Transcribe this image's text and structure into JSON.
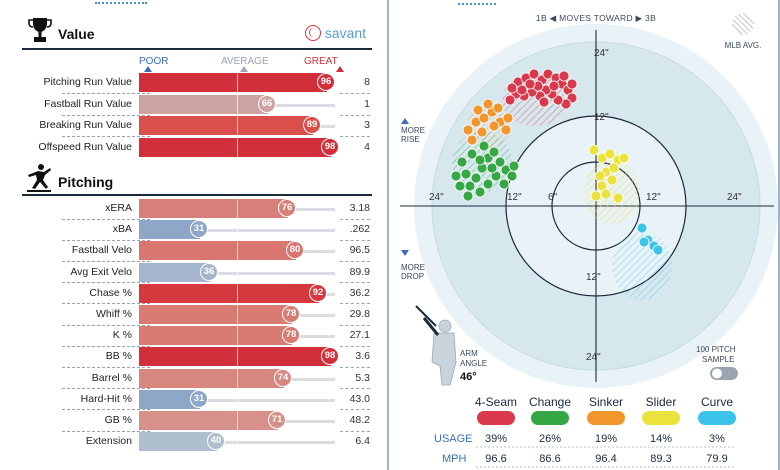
{
  "value_section": {
    "title": "Value",
    "brand": "savant",
    "scale": {
      "poor": "POOR",
      "average": "AVERAGE",
      "great": "GREAT"
    },
    "rows": [
      {
        "label": "Pitching Run Value",
        "percentile": 96,
        "value": "8",
        "color": "#d32f3a"
      },
      {
        "label": "Fastball Run Value",
        "percentile": 66,
        "value": "1",
        "color": "#cda4a2"
      },
      {
        "label": "Breaking Run Value",
        "percentile": 89,
        "value": "3",
        "color": "#da4f4c"
      },
      {
        "label": "Offspeed Run Value",
        "percentile": 98,
        "value": "4",
        "color": "#d32f3a"
      }
    ]
  },
  "pitching_section": {
    "title": "Pitching",
    "rows": [
      {
        "label": "xERA",
        "percentile": 76,
        "value": "3.18",
        "color": "#d77f78"
      },
      {
        "label": "xBA",
        "percentile": 31,
        "value": ".262",
        "color": "#8ea6c8"
      },
      {
        "label": "Fastball Velo",
        "percentile": 80,
        "value": "96.5",
        "color": "#d9766f"
      },
      {
        "label": "Avg Exit Velo",
        "percentile": 36,
        "value": "89.9",
        "color": "#a5b6cc"
      },
      {
        "label": "Chase %",
        "percentile": 92,
        "value": "36.2",
        "color": "#d5383d"
      },
      {
        "label": "Whiff %",
        "percentile": 78,
        "value": "29.8",
        "color": "#d77b73"
      },
      {
        "label": "K %",
        "percentile": 78,
        "value": "27.1",
        "color": "#d77b73"
      },
      {
        "label": "BB %",
        "percentile": 98,
        "value": "3.6",
        "color": "#d32f3a"
      },
      {
        "label": "Barrel %",
        "percentile": 74,
        "value": "5.3",
        "color": "#d8877f"
      },
      {
        "label": "Hard-Hit %",
        "percentile": 31,
        "value": "43.0",
        "color": "#8ea6c8"
      },
      {
        "label": "GB %",
        "percentile": 71,
        "value": "48.2",
        "color": "#d8918a"
      },
      {
        "label": "Extension",
        "percentile": 40,
        "value": "6.4",
        "color": "#b0bfcf"
      }
    ]
  },
  "movement_chart": {
    "header": "1B ◀ MOVES TOWARD ▶ 3B",
    "mlb_avg": "MLB AVG.",
    "more_rise": "MORE\nRISE",
    "more_drop": "MORE\nDROP",
    "arm_angle_label": "ARM\nANGLE",
    "arm_angle_value": "46°",
    "sample_label": "100 PITCH\nSAMPLE",
    "ring_labels": [
      "24\"",
      "12\"",
      "6\"",
      "12\"",
      "24\"",
      "24\"",
      "12\"",
      "12\"",
      "24\""
    ],
    "pitches": [
      {
        "name": "4-Seam",
        "color": "#d9394a",
        "usage": "39%",
        "mph": "96.6"
      },
      {
        "name": "Change",
        "color": "#35a845",
        "usage": "26%",
        "mph": "86.6"
      },
      {
        "name": "Sinker",
        "color": "#f0962c",
        "usage": "19%",
        "mph": "96.4"
      },
      {
        "name": "Slider",
        "color": "#ece23d",
        "usage": "14%",
        "mph": "89.3"
      },
      {
        "name": "Curve",
        "color": "#3cc3ea",
        "usage": "3%",
        "mph": "79.9"
      }
    ],
    "row_labels": {
      "usage": "USAGE",
      "mph": "MPH"
    }
  }
}
